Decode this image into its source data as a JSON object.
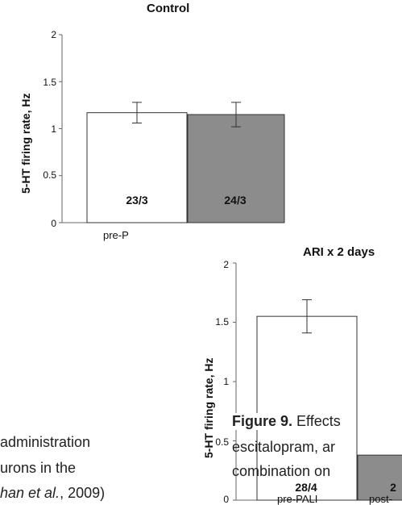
{
  "chart_data": [
    {
      "type": "bar",
      "title": "Control",
      "ylabel": "5-HT firing rate, Hz",
      "ylim": [
        0,
        2
      ],
      "yticks": [
        "0",
        "0.5",
        "1",
        "1.5",
        "2"
      ],
      "categories": [
        "pre-P",
        ""
      ],
      "values": [
        1.17,
        1.15
      ],
      "errors": [
        0.11,
        0.13
      ],
      "bar_labels": [
        "23/3",
        "24/3"
      ],
      "colors": [
        "#ffffff",
        "#8c8c8c"
      ]
    },
    {
      "type": "bar",
      "title": "ARI x 2 days",
      "ylabel": "5-HT firing rate, Hz",
      "ylim": [
        0,
        2
      ],
      "yticks": [
        "0",
        "0.5",
        "1",
        "1.5",
        "2"
      ],
      "categories": [
        "pre-PALI",
        "post-"
      ],
      "values": [
        1.55,
        0.38
      ],
      "errors": [
        0.14,
        0.0
      ],
      "bar_labels": [
        "28/4",
        "2"
      ],
      "colors": [
        "#ffffff",
        "#8c8c8c"
      ]
    }
  ],
  "caption": {
    "line1_left": "administration",
    "line2_left": "urons in the",
    "line3_left_italic": "han et al.",
    "line3_left_rest": ", 2009)",
    "figure_label": "Figure 9.",
    "figure_rest": " Effects",
    "line2_right": "escitalopram, ar",
    "line3_right": "combination on"
  }
}
